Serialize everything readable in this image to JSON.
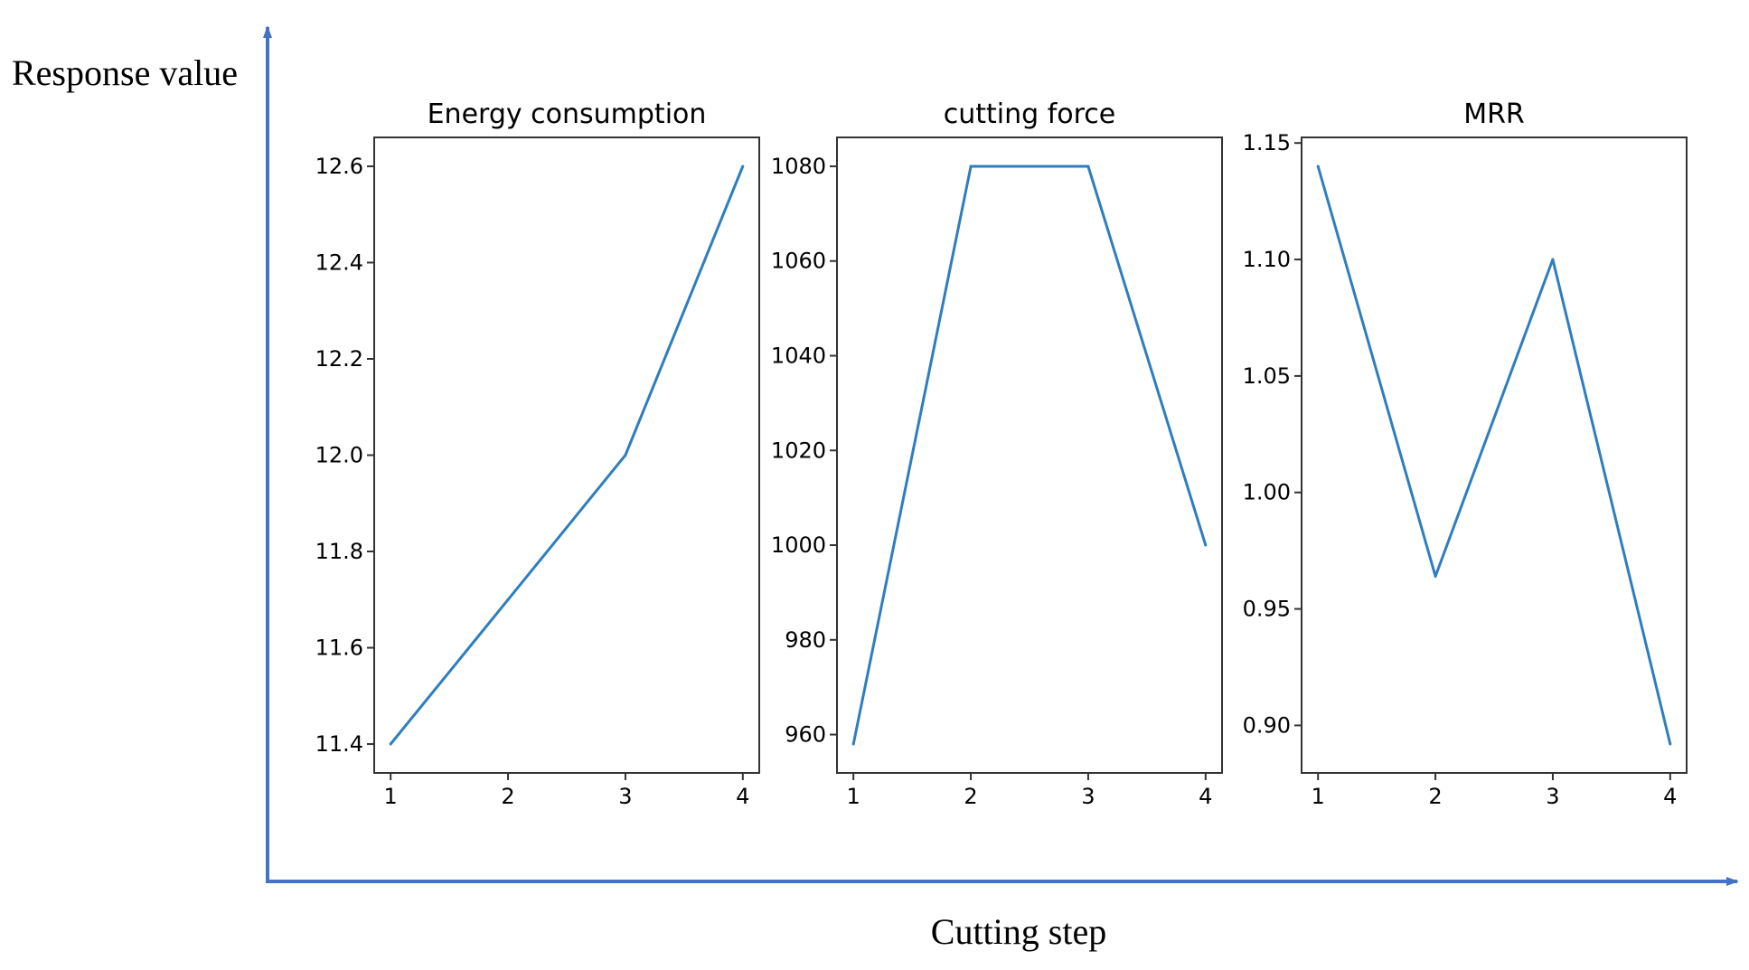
{
  "figure": {
    "ylabel": "Response value",
    "xlabel": "Cutting step",
    "axis_color": "#4472C4",
    "line_color": "#2E7EBF"
  },
  "chart_data": [
    {
      "type": "line",
      "title": "Energy consumption",
      "x": [
        1,
        2,
        3,
        4
      ],
      "values": [
        11.4,
        11.7,
        12.0,
        12.6
      ],
      "xlim": [
        0.86,
        4.14
      ],
      "ylim": [
        11.34,
        12.66
      ],
      "xticks": [
        1,
        2,
        3,
        4
      ],
      "xtick_labels": [
        "1",
        "2",
        "3",
        "4"
      ],
      "yticks": [
        11.4,
        11.6,
        11.8,
        12.0,
        12.2,
        12.4,
        12.6
      ],
      "ytick_labels": [
        "11.4",
        "11.6",
        "11.8",
        "12.0",
        "12.2",
        "12.4",
        "12.6"
      ]
    },
    {
      "type": "line",
      "title": "cutting force",
      "x": [
        1,
        2,
        3,
        4
      ],
      "values": [
        958,
        1080,
        1080,
        1000
      ],
      "xlim": [
        0.86,
        4.14
      ],
      "ylim": [
        951.9,
        1086.1
      ],
      "xticks": [
        1,
        2,
        3,
        4
      ],
      "xtick_labels": [
        "1",
        "2",
        "3",
        "4"
      ],
      "yticks": [
        960,
        980,
        1000,
        1020,
        1040,
        1060,
        1080
      ],
      "ytick_labels": [
        "960",
        "980",
        "1000",
        "1020",
        "1040",
        "1060",
        "1080"
      ]
    },
    {
      "type": "line",
      "title": "MRR",
      "x": [
        1,
        2,
        3,
        4
      ],
      "values": [
        1.14,
        0.964,
        1.1,
        0.892
      ],
      "xlim": [
        0.86,
        4.14
      ],
      "ylim": [
        0.8796,
        1.1524
      ],
      "xticks": [
        1,
        2,
        3,
        4
      ],
      "xtick_labels": [
        "1",
        "2",
        "3",
        "4"
      ],
      "yticks": [
        0.9,
        0.95,
        1.0,
        1.05,
        1.1,
        1.15
      ],
      "ytick_labels": [
        "0.90",
        "0.95",
        "1.00",
        "1.05",
        "1.10",
        "1.15"
      ]
    }
  ]
}
